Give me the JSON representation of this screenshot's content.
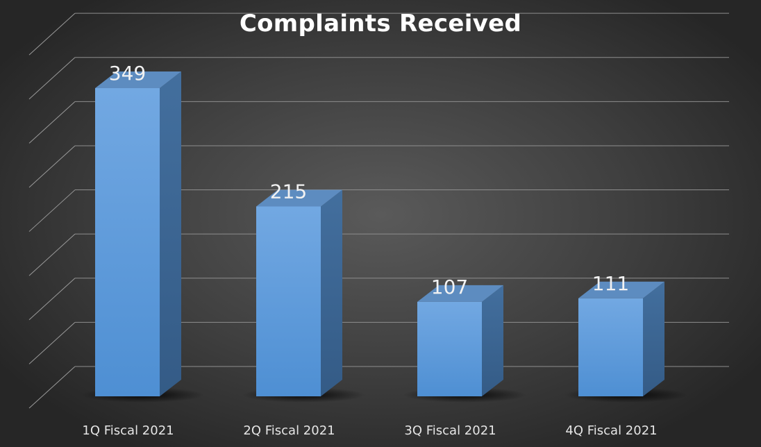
{
  "chart_data": {
    "type": "bar",
    "title": "Complaints Received",
    "categories": [
      "1Q Fiscal 2021",
      "2Q Fiscal 2021",
      "3Q Fiscal 2021",
      "4Q Fiscal 2021"
    ],
    "values": [
      349,
      215,
      107,
      111
    ],
    "xlabel": "",
    "ylabel": "",
    "ylim": [
      0,
      400
    ],
    "grid": true,
    "legend": "none",
    "style": "3d-column",
    "bar_color": "#5b9bd5",
    "background_color": "#3f3f3f"
  }
}
